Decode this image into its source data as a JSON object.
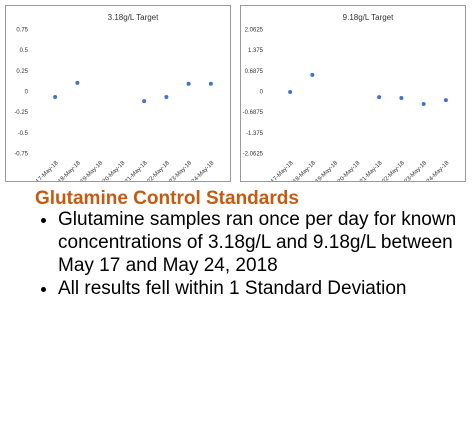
{
  "chart_data": [
    {
      "type": "scatter",
      "title": "3.18g/L Target",
      "categories": [
        "17-May-18",
        "18-May-18",
        "19-May-18",
        "20-May-18",
        "21-May-18",
        "22-May-18",
        "23-May-18",
        "24-May-18"
      ],
      "values": [
        -0.06,
        0.11,
        null,
        null,
        -0.11,
        -0.06,
        0.1,
        0.1
      ],
      "color": "#4472c4",
      "ylim": [
        -0.75,
        0.75
      ],
      "yticks": [
        0.75,
        0.5,
        0.25,
        0,
        -0.25,
        -0.5,
        -0.75
      ]
    },
    {
      "type": "scatter",
      "title": "9.18g/L Target",
      "categories": [
        "17-May-18",
        "18-May-18",
        "19-May-18",
        "20-May-18",
        "21-May-18",
        "22-May-18",
        "23-May-18",
        "24-May-18"
      ],
      "values": [
        0,
        0.57,
        null,
        null,
        -0.17,
        -0.2,
        -0.4,
        -0.27
      ],
      "color": "#4472c4",
      "ylim": [
        -2.0625,
        2.0625
      ],
      "yticks": [
        2.0625,
        1.375,
        0.6875,
        0,
        -0.6875,
        -1.375,
        -2.0625
      ]
    }
  ],
  "heading": "Glutamine Control Standards",
  "bullets": [
    "Glutamine samples ran once per day for known concentrations of 3.18g/L and 9.18g/L between May 17 and May 24, 2018",
    "All results fell within 1 Standard Deviation"
  ]
}
